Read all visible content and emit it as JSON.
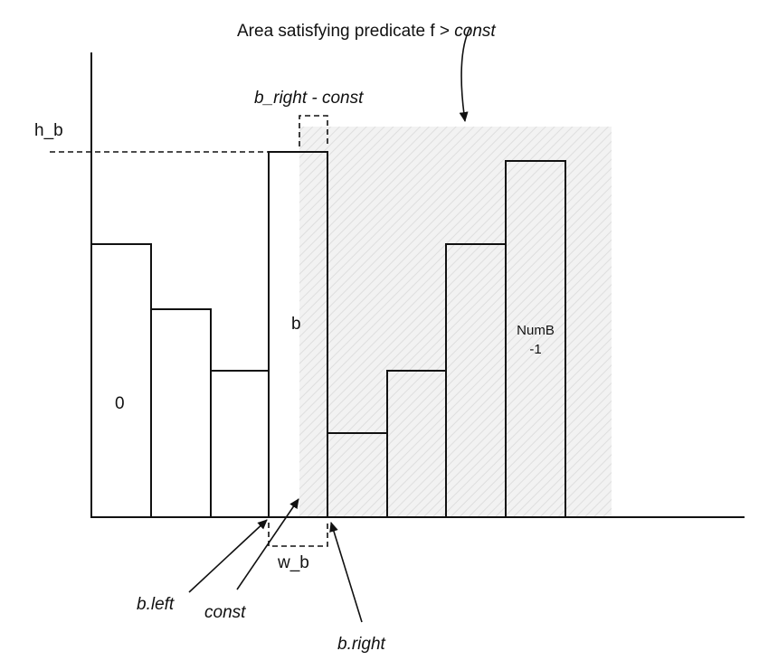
{
  "labels": {
    "title_text": "Area satisfying predicate f > ",
    "title_const": "const",
    "h_b": "h_b",
    "b_right_const_a": "b_right",
    "b_right_const_b": " - const",
    "bar_0": "0",
    "bar_b": "b",
    "bar_last_line1": "NumB",
    "bar_last_line2": "-1",
    "w_b": "w_b",
    "b_left": "b.left",
    "const": "const",
    "b_right": "b.right"
  },
  "colors": {
    "shaded_region": "#f2f2f2",
    "hatch": "#d9d9d9",
    "stroke": "#111111"
  }
}
